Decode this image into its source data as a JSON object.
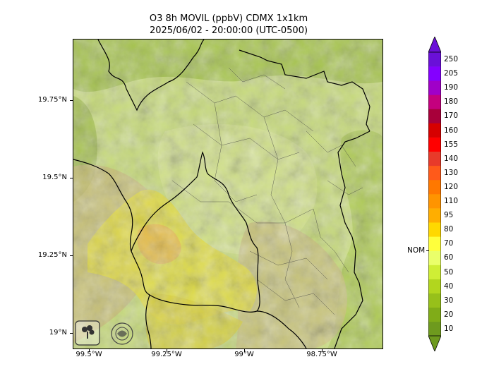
{
  "title": {
    "line1": "O3 8h MOVIL (ppbV) CDMX 1x1km",
    "line2": "2025/06/02 - 20:00:00 (UTC-0500)"
  },
  "axes": {
    "x_ticks": [
      "99.5°W",
      "99.25°W",
      "99°W",
      "98.75°W"
    ],
    "y_ticks": [
      "19.75°N",
      "19.5°N",
      "19.25°N",
      "19°N"
    ]
  },
  "colorbar": {
    "levels": [
      "10",
      "20",
      "30",
      "40",
      "50",
      "60",
      "70",
      "80",
      "95",
      "110",
      "120",
      "130",
      "140",
      "155",
      "160",
      "170",
      "180",
      "190",
      "205",
      "250"
    ],
    "colors": [
      "#6e9a1e",
      "#80ac18",
      "#97c01a",
      "#b2d61e",
      "#cfee35",
      "#eaff6a",
      "#ffff3c",
      "#ffd800",
      "#ffae00",
      "#ff9400",
      "#ff7800",
      "#ff5a1a",
      "#e83a2a",
      "#ff0000",
      "#d60000",
      "#a8003a",
      "#c4007e",
      "#a000c8",
      "#8400ff",
      "#6a10d8"
    ],
    "nom_label": "NOM",
    "nom_value": 65
  },
  "logos": {
    "left": "SEDEMA",
    "right": "CALIDAD DEL AIRE"
  },
  "colors": {
    "background_land": "#c9db7d",
    "border_state": "#000000",
    "border_municipal": "#3a3a3a"
  }
}
